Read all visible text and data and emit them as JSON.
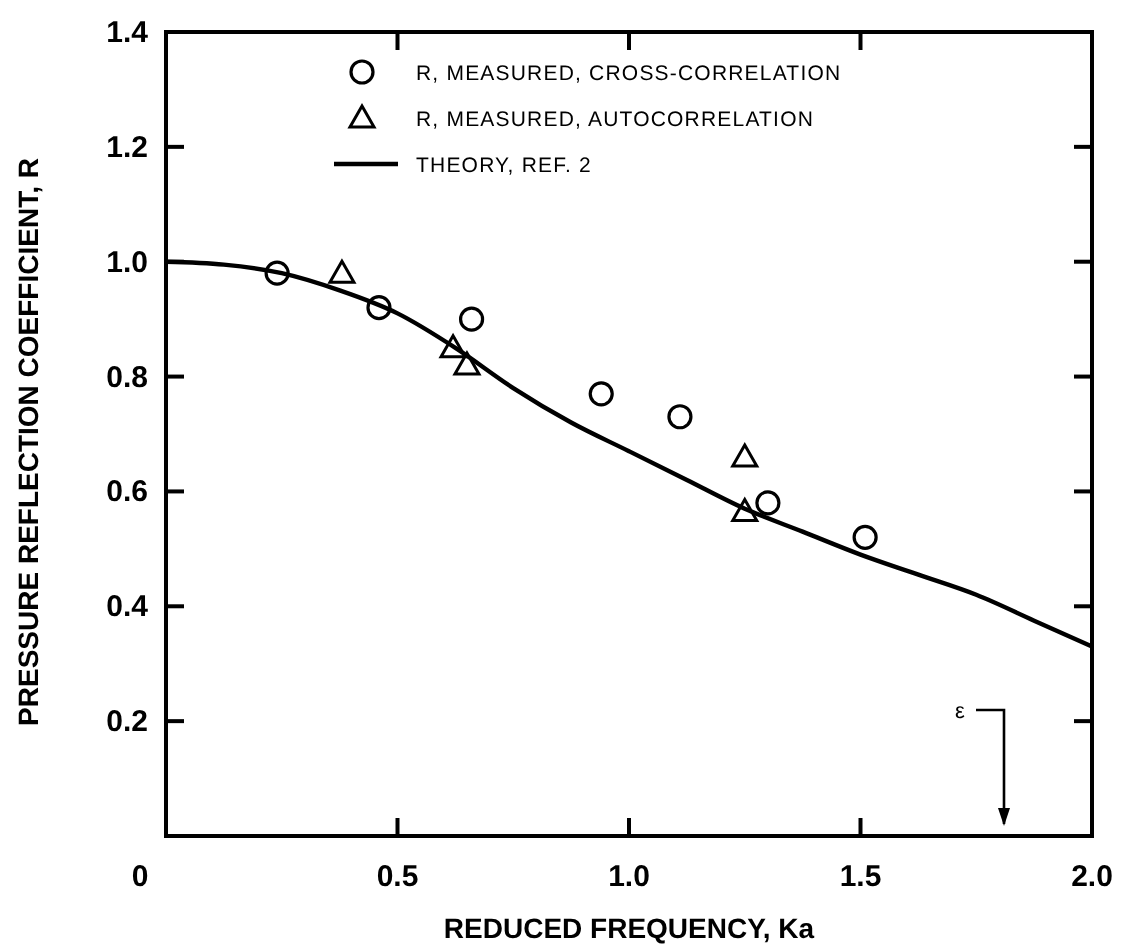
{
  "chart_data": {
    "type": "scatter",
    "xlabel": "REDUCED FREQUENCY, Ka",
    "ylabel": "PRESSURE REFLECTION COEFFICIENT, R",
    "xlim": [
      0,
      2
    ],
    "xticks": [
      0,
      0.5,
      {
        "value": 1,
        "label": "1.0"
      },
      1.5,
      {
        "value": 2,
        "label": "2.0"
      }
    ],
    "ylim": [
      0,
      1.4
    ],
    "yticks": [
      0.2,
      0.4,
      0.6,
      0.8,
      {
        "value": 1,
        "label": "1.0"
      },
      1.2,
      1.4
    ],
    "grid": false,
    "legend": "top",
    "series": [
      {
        "name": "R, MEASURED, CROSS-CORRELATION",
        "type": "scatter",
        "marker": "circle",
        "color": "#000000",
        "x": [
          0.24,
          0.46,
          0.66,
          0.94,
          1.11,
          1.3,
          1.51
        ],
        "values": [
          0.98,
          0.92,
          0.9,
          0.77,
          0.73,
          0.58,
          0.52
        ]
      },
      {
        "name": "R, MEASURED, AUTOCORRELATION",
        "type": "scatter",
        "marker": "triangle",
        "color": "#000000",
        "x": [
          0.38,
          0.62,
          0.65,
          1.25,
          1.25
        ],
        "values": [
          0.98,
          0.85,
          0.82,
          0.66,
          0.565
        ]
      },
      {
        "name": "THEORY, REF. 2",
        "type": "line",
        "marker": "none",
        "line_style": "solid",
        "color": "#000000",
        "x": [
          0,
          0.125,
          0.25,
          0.375,
          0.5,
          0.625,
          0.75,
          0.875,
          1.0,
          1.125,
          1.25,
          1.375,
          1.5,
          1.625,
          1.75,
          1.875,
          2.0
        ],
        "values": [
          1.0,
          0.995,
          0.98,
          0.95,
          0.91,
          0.85,
          0.78,
          0.72,
          0.67,
          0.62,
          0.57,
          0.53,
          0.49,
          0.455,
          0.42,
          0.375,
          0.33
        ]
      }
    ],
    "annotations": [
      "ε"
    ]
  }
}
